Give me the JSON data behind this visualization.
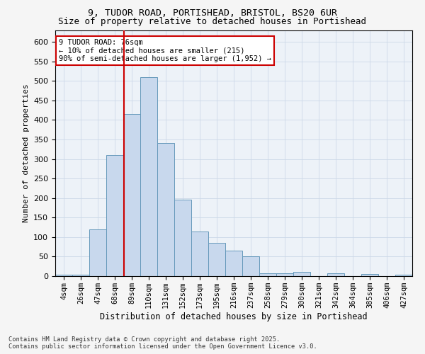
{
  "title_line1": "9, TUDOR ROAD, PORTISHEAD, BRISTOL, BS20 6UR",
  "title_line2": "Size of property relative to detached houses in Portishead",
  "xlabel": "Distribution of detached houses by size in Portishead",
  "ylabel": "Number of detached properties",
  "bar_labels": [
    "4sqm",
    "26sqm",
    "47sqm",
    "68sqm",
    "89sqm",
    "110sqm",
    "131sqm",
    "152sqm",
    "173sqm",
    "195sqm",
    "216sqm",
    "237sqm",
    "258sqm",
    "279sqm",
    "300sqm",
    "321sqm",
    "342sqm",
    "364sqm",
    "385sqm",
    "406sqm",
    "427sqm"
  ],
  "bar_values": [
    3,
    3,
    120,
    310,
    415,
    510,
    340,
    195,
    115,
    85,
    65,
    50,
    8,
    8,
    10,
    0,
    8,
    0,
    5,
    0,
    3
  ],
  "bar_color": "#c8d8ed",
  "bar_edge_color": "#6699bb",
  "grid_color": "#ccd8e8",
  "background_color": "#edf2f8",
  "fig_background_color": "#f5f5f5",
  "vline_x": 3.55,
  "vline_color": "#cc0000",
  "annotation_text": "9 TUDOR ROAD: 76sqm\n← 10% of detached houses are smaller (215)\n90% of semi-detached houses are larger (1,952) →",
  "annotation_box_facecolor": "#ffffff",
  "annotation_box_edgecolor": "#cc0000",
  "ylim": [
    0,
    630
  ],
  "yticks": [
    0,
    50,
    100,
    150,
    200,
    250,
    300,
    350,
    400,
    450,
    500,
    550,
    600
  ],
  "title1_fontsize": 9.5,
  "title2_fontsize": 9,
  "ylabel_fontsize": 8,
  "xlabel_fontsize": 8.5,
  "tick_fontsize": 7.5,
  "ytick_fontsize": 8,
  "footnote": "Contains HM Land Registry data © Crown copyright and database right 2025.\nContains public sector information licensed under the Open Government Licence v3.0."
}
